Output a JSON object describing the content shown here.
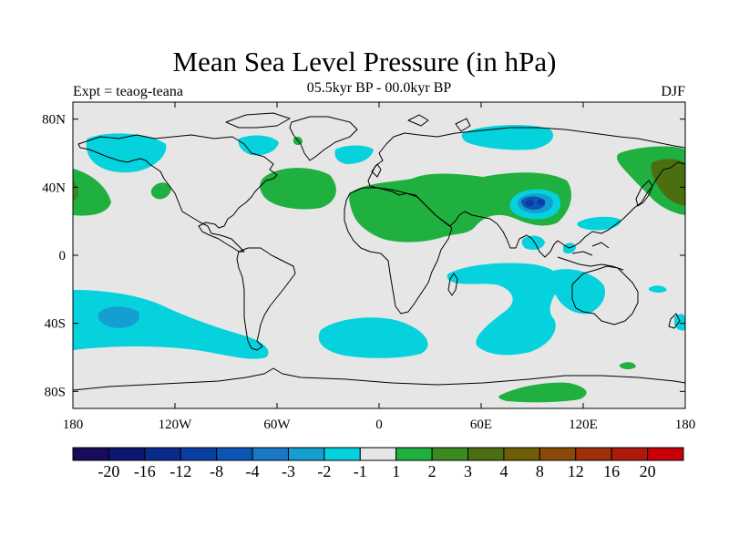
{
  "title": "Mean Sea Level Pressure (in hPa)",
  "subtitle_left": "Expt = teaog-teana",
  "subtitle_center": "05.5kyr BP - 00.0kyr BP",
  "subtitle_right": "DJF",
  "colors": {
    "ocean_bg": "#e6e6e6",
    "coast": "#000000"
  },
  "chart_data": {
    "type": "filled_contour_map",
    "title": "Mean Sea Level Pressure (in hPa)",
    "lon_range": [
      -180,
      180
    ],
    "lat_range": [
      -90,
      90
    ],
    "lon_ticks": [
      {
        "value": -180,
        "label": "180"
      },
      {
        "value": -120,
        "label": "120W"
      },
      {
        "value": -60,
        "label": "60W"
      },
      {
        "value": 0,
        "label": "0"
      },
      {
        "value": 60,
        "label": "60E"
      },
      {
        "value": 120,
        "label": "120E"
      },
      {
        "value": 180,
        "label": "180"
      }
    ],
    "lat_ticks": [
      {
        "value": 80,
        "label": "80N"
      },
      {
        "value": 40,
        "label": "40N"
      },
      {
        "value": 0,
        "label": "0"
      },
      {
        "value": -40,
        "label": "40S"
      },
      {
        "value": -80,
        "label": "80S"
      }
    ],
    "colorbar": {
      "colors": [
        "#1a0a5e",
        "#0c1673",
        "#0a2a8c",
        "#0a3ea3",
        "#0a55b5",
        "#1a78c8",
        "#159fd0",
        "#05d2dc",
        "#e6e6e6",
        "#20b040",
        "#3a8a20",
        "#4a6e10",
        "#6e5e08",
        "#8a4a08",
        "#9e300a",
        "#b0180c",
        "#c8000a"
      ],
      "labels": [
        "-20",
        "-16",
        "-12",
        "-8",
        "-4",
        "-3",
        "-2",
        "-1",
        "1",
        "2",
        "3",
        "4",
        "8",
        "12",
        "16",
        "20"
      ]
    },
    "anomalies": [
      {
        "name": "n-pacific-positive",
        "level": "2",
        "lon_min": -180,
        "lon_max": -158,
        "lat_min": 23,
        "lat_max": 53
      },
      {
        "name": "arctic-canada-negative",
        "level": "-2",
        "lon_min": -155,
        "lon_max": -112,
        "lat_min": 62,
        "lat_max": 78
      },
      {
        "name": "alaska-positive-blob",
        "level": "2",
        "lon_min": -138,
        "lon_max": -128,
        "lat_min": 30,
        "lat_max": 42
      },
      {
        "name": "n-atlantic-positive",
        "level": "2",
        "lon_min": -70,
        "lon_max": -25,
        "lat_min": 30,
        "lat_max": 55
      },
      {
        "name": "greenland-sea-negative",
        "level": "-2",
        "lon_min": -10,
        "lon_max": 0,
        "lat_min": 60,
        "lat_max": 70
      },
      {
        "name": "arctic-russia-negative",
        "level": "-2",
        "lon_min": 55,
        "lon_max": 105,
        "lat_min": 66,
        "lat_max": 82
      },
      {
        "name": "north-africa-eurasia-positive",
        "level": "2",
        "lon_min": -15,
        "lon_max": 125,
        "lat_min": 5,
        "lat_max": 50
      },
      {
        "name": "tibet-negative",
        "level": "-4",
        "lon_min": 81,
        "lon_max": 103,
        "lat_min": 24,
        "lat_max": 40
      },
      {
        "name": "tibet-core-negative",
        "level": "-8",
        "lon_min": 87,
        "lon_max": 98,
        "lat_min": 27,
        "lat_max": 37
      },
      {
        "name": "nw-pacific-positive",
        "level": "2",
        "lon_min": 115,
        "lon_max": 180,
        "lat_min": 20,
        "lat_max": 65
      },
      {
        "name": "kamchatka-positive",
        "level": "4",
        "lon_min": 150,
        "lon_max": 180,
        "lat_min": 30,
        "lat_max": 55
      },
      {
        "name": "bay-of-bengal-negative",
        "level": "-2",
        "lon_min": 80,
        "lon_max": 95,
        "lat_min": 5,
        "lat_max": 15
      },
      {
        "name": "south-china-sea-negative",
        "level": "-2",
        "lon_min": 105,
        "lon_max": 135,
        "lat_min": 15,
        "lat_max": 25
      },
      {
        "name": "s-pacific-negative",
        "level": "-2",
        "lon_min": -180,
        "lon_max": -70,
        "lat_min": -55,
        "lat_max": -20
      },
      {
        "name": "s-pacific-core-negative",
        "level": "-3",
        "lon_min": -175,
        "lon_max": -150,
        "lat_min": -45,
        "lat_max": -30
      },
      {
        "name": "s-atlantic-negative",
        "level": "-2",
        "lon_min": -25,
        "lon_max": 30,
        "lat_min": -60,
        "lat_max": -35
      },
      {
        "name": "indian-ocean-negative",
        "level": "-2",
        "lon_min": 15,
        "lon_max": 130,
        "lat_min": -60,
        "lat_max": -5
      },
      {
        "name": "australia-east-negative",
        "level": "-2",
        "lon_min": 165,
        "lon_max": 180,
        "lat_min": -45,
        "lat_max": -30
      },
      {
        "name": "southern-ocean-positive",
        "level": "2",
        "lon_min": 65,
        "lon_max": 135,
        "lat_min": -88,
        "lat_max": -75
      }
    ]
  }
}
